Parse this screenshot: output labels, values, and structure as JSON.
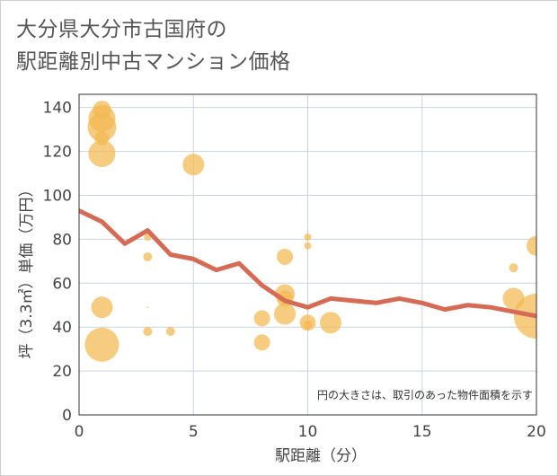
{
  "title_lines": [
    "大分県大分市古国府の",
    "駅距離別中古マンション価格"
  ],
  "chart_data": {
    "type": "scatter",
    "title": "大分県大分市古国府の駅距離別中古マンション価格",
    "xlabel": "駅距離（分）",
    "ylabel": "坪（3.3㎡）単価（万円）",
    "xlim": [
      0,
      20
    ],
    "ylim": [
      0,
      146
    ],
    "xticks": [
      0,
      5,
      10,
      15,
      20
    ],
    "yticks": [
      0,
      20,
      40,
      60,
      80,
      100,
      120,
      140
    ],
    "grid": true,
    "note": "円の大きさは、取引のあった物件面積を示す",
    "bubble_color": "#f2b950",
    "line_color": "#d66b55",
    "bubbles": [
      {
        "x": 1,
        "y": 139,
        "size": 10
      },
      {
        "x": 1,
        "y": 135,
        "size": 15
      },
      {
        "x": 1,
        "y": 131,
        "size": 16
      },
      {
        "x": 1,
        "y": 126,
        "size": 8
      },
      {
        "x": 1,
        "y": 119,
        "size": 15
      },
      {
        "x": 1,
        "y": 49,
        "size": 12
      },
      {
        "x": 1,
        "y": 32,
        "size": 19
      },
      {
        "x": 3,
        "y": 81,
        "size": 4
      },
      {
        "x": 3,
        "y": 72,
        "size": 5
      },
      {
        "x": 3,
        "y": 49,
        "size": 1
      },
      {
        "x": 3,
        "y": 38,
        "size": 5
      },
      {
        "x": 4,
        "y": 38,
        "size": 5
      },
      {
        "x": 5,
        "y": 114,
        "size": 12
      },
      {
        "x": 8,
        "y": 44,
        "size": 9
      },
      {
        "x": 8,
        "y": 33,
        "size": 9
      },
      {
        "x": 9,
        "y": 72,
        "size": 9
      },
      {
        "x": 9,
        "y": 55,
        "size": 11
      },
      {
        "x": 9,
        "y": 53,
        "size": 9
      },
      {
        "x": 9,
        "y": 46,
        "size": 12
      },
      {
        "x": 10,
        "y": 81,
        "size": 4
      },
      {
        "x": 10,
        "y": 77,
        "size": 4
      },
      {
        "x": 10,
        "y": 42,
        "size": 9
      },
      {
        "x": 10,
        "y": 41,
        "size": 5
      },
      {
        "x": 11,
        "y": 42,
        "size": 12
      },
      {
        "x": 19,
        "y": 67,
        "size": 5
      },
      {
        "x": 19,
        "y": 53,
        "size": 12
      },
      {
        "x": 20,
        "y": 77,
        "size": 11
      },
      {
        "x": 20,
        "y": 45,
        "size": 25
      }
    ],
    "average_line": {
      "x": [
        0,
        1,
        2,
        3,
        4,
        5,
        6,
        7,
        8,
        9,
        10,
        11,
        12,
        13,
        14,
        15,
        16,
        17,
        18,
        19,
        20
      ],
      "y": [
        93,
        88,
        78,
        84,
        73,
        71,
        66,
        69,
        59,
        52,
        49,
        53,
        52,
        51,
        53,
        51,
        48,
        50,
        49,
        47,
        45
      ]
    }
  }
}
